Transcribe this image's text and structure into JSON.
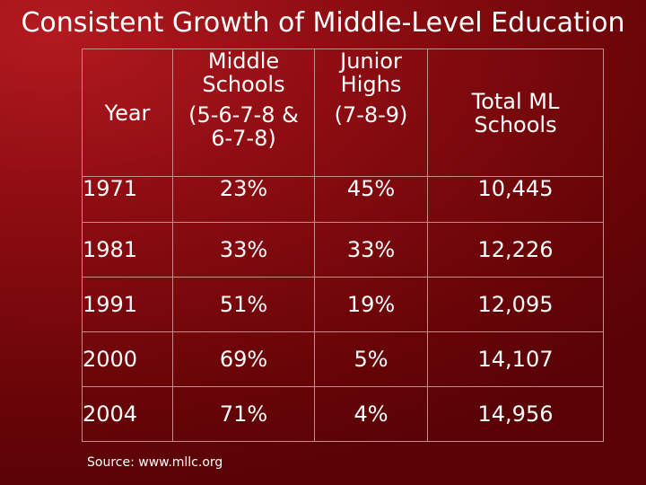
{
  "title": "Consistent Growth of Middle-Level Education",
  "table": {
    "headers": {
      "year": "Year",
      "middle_schools_line1": "Middle",
      "middle_schools_line2": "Schools",
      "middle_schools_line3": "(5-6-7-8 &",
      "middle_schools_line4": "6-7-8)",
      "junior_highs_line1": "Junior",
      "junior_highs_line2": "Highs",
      "junior_highs_line3": "(7-8-9)",
      "total_line1": "Total ML",
      "total_line2": "Schools"
    },
    "rows": [
      {
        "year": "1971",
        "middle_schools": "23%",
        "junior_highs": "45%",
        "total": "10,445"
      },
      {
        "year": "1981",
        "middle_schools": "33%",
        "junior_highs": "33%",
        "total": "12,226"
      },
      {
        "year": "1991",
        "middle_schools": "51%",
        "junior_highs": "19%",
        "total": "12,095"
      },
      {
        "year": "2000",
        "middle_schools": "69%",
        "junior_highs": "5%",
        "total": "14,107"
      },
      {
        "year": "2004",
        "middle_schools": "71%",
        "junior_highs": "4%",
        "total": "14,956"
      }
    ]
  },
  "source": "Source: www.mllc.org"
}
